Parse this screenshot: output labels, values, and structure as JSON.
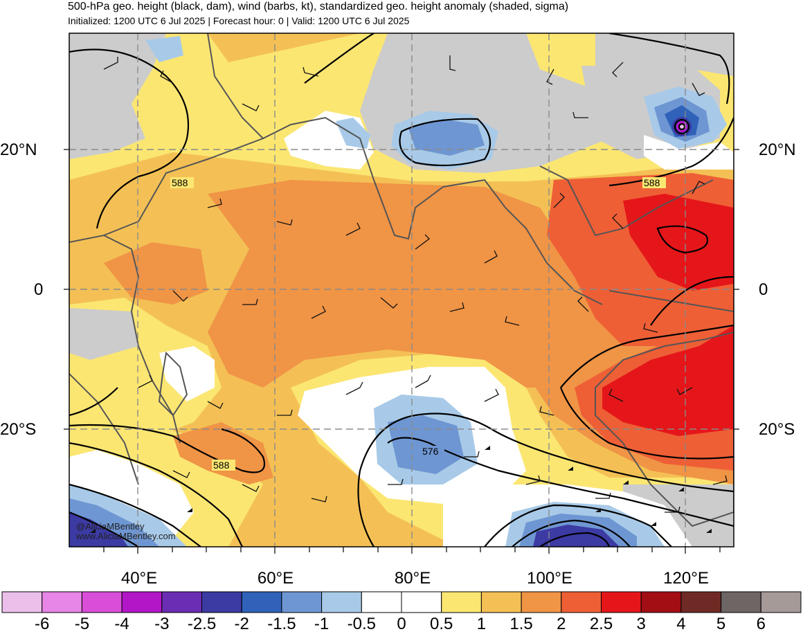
{
  "header": {
    "title": "500-hPa geo. height (black, dam), wind (barbs, kt), standardized geo. height anomaly (shaded, sigma)",
    "subtitle": "Initialized: 1200 UTC 6 Jul 2025 | Forecast hour: 0 | Valid: 1200 UTC 6 Jul 2025"
  },
  "map": {
    "projection": "cylindrical equidistant",
    "lon_range": [
      30,
      127
    ],
    "lat_range": [
      -37,
      37
    ],
    "lat_labels": [
      "20°N",
      "0",
      "20°S"
    ],
    "lon_labels": [
      "40°E",
      "60°E",
      "80°E",
      "100°E",
      "120°E"
    ],
    "contour_labels": [
      "588",
      "588",
      "588",
      "576"
    ],
    "features": {
      "typhoon_low_center": "small deep negative anomaly near 20°N, 120°E",
      "positive_anomaly_region": "Maritime Continent / NW Australia",
      "negative_anomaly_trough": "southern Indian Ocean near 80°E, 25°S"
    }
  },
  "credits": {
    "handle": "@AliciaMBentley",
    "website": "www.AliciaMBentley.com"
  },
  "colorbar": {
    "labels": [
      "-6",
      "-5",
      "-4",
      "-3",
      "-2.5",
      "-2",
      "-1.5",
      "-1",
      "-0.5",
      "0",
      "0.5",
      "1",
      "1.5",
      "2",
      "2.5",
      "3",
      "4",
      "5",
      "6"
    ],
    "colors": [
      "#ecbfea",
      "#e786e6",
      "#d94ed8",
      "#b216c7",
      "#6b2db3",
      "#3c3aa3",
      "#2f62b8",
      "#6e96d2",
      "#a8cae8",
      "#ffffff",
      "#ffffff",
      "#fbe672",
      "#f4c055",
      "#f09446",
      "#ee5f36",
      "#e5161a",
      "#a30d14",
      "#6f2a25",
      "#6e6565",
      "#a69a99"
    ]
  }
}
